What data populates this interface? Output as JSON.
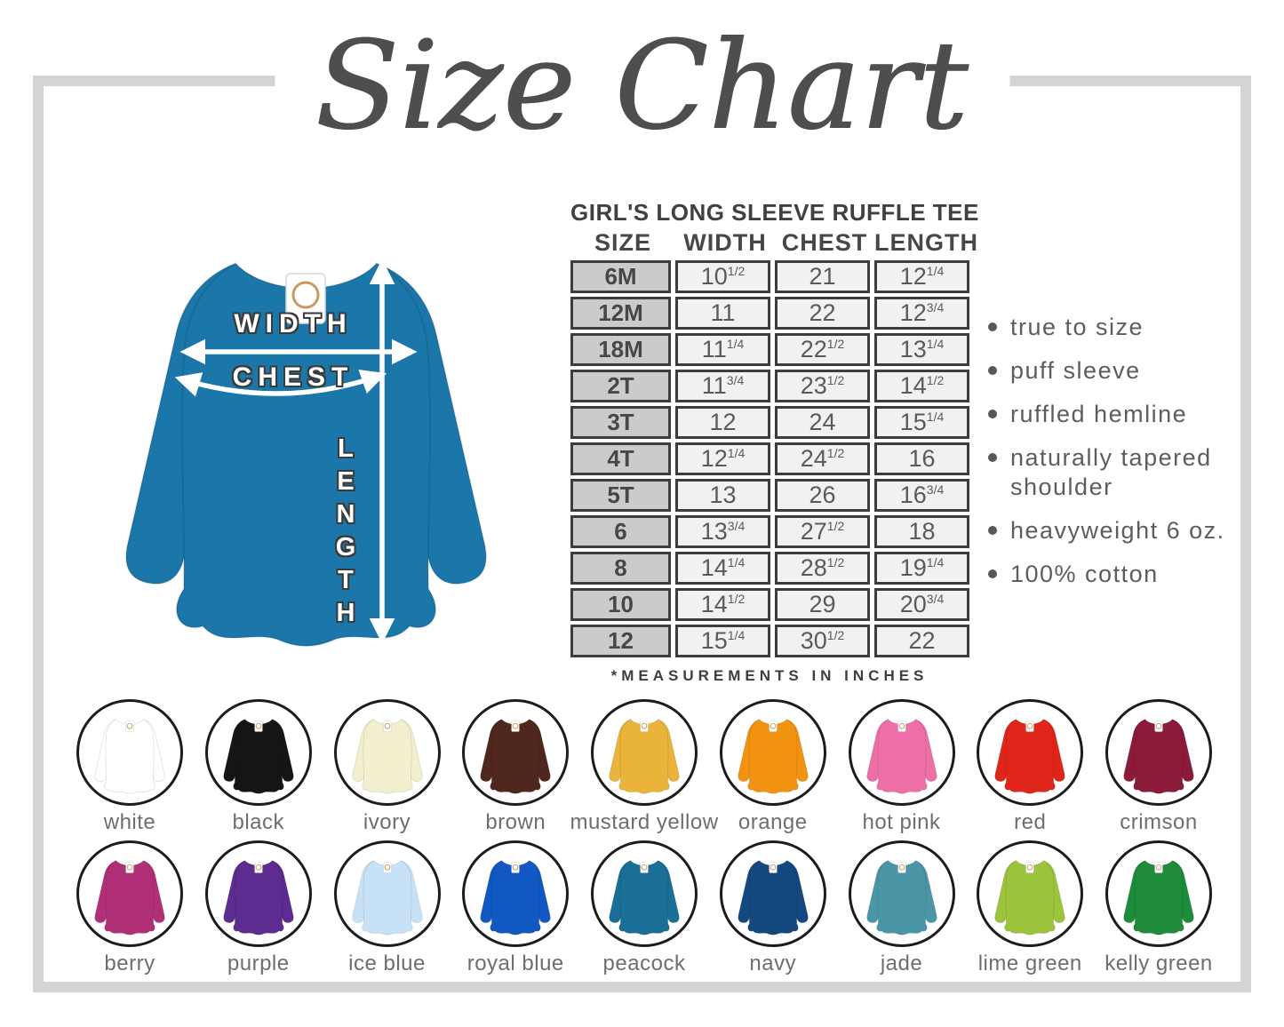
{
  "title": "Size Chart",
  "table": {
    "heading": "GIRL'S LONG SLEEVE RUFFLE TEE",
    "columns": [
      "SIZE",
      "WIDTH",
      "CHEST",
      "LENGTH"
    ],
    "rows": [
      [
        "6M",
        "10 1/2",
        "21",
        "12 1/4"
      ],
      [
        "12M",
        "11",
        "22",
        "12 3/4"
      ],
      [
        "18M",
        "11 1/4",
        "22 1/2",
        "13 1/4"
      ],
      [
        "2T",
        "11 3/4",
        "23 1/2",
        "14 1/2"
      ],
      [
        "3T",
        "12",
        "24",
        "15 1/4"
      ],
      [
        "4T",
        "12 1/4",
        "24 1/2",
        "16"
      ],
      [
        "5T",
        "13",
        "26",
        "16 3/4"
      ],
      [
        "6",
        "13 3/4",
        "27 1/2",
        "18"
      ],
      [
        "8",
        "14 1/4",
        "28 1/2",
        "19 1/4"
      ],
      [
        "10",
        "14 1/2",
        "29",
        "20 3/4"
      ],
      [
        "12",
        "15 1/4",
        "30 1/2",
        "22"
      ]
    ],
    "footnote": "*MEASUREMENTS IN INCHES"
  },
  "diagram": {
    "shirt_color": "#1b76a9",
    "labels": {
      "width": "WIDTH",
      "chest": "CHEST",
      "length": "LENGTH"
    }
  },
  "features": [
    "true to size",
    "puff sleeve",
    "ruffled hemline",
    "naturally tapered shoulder",
    "heavyweight 6 oz.",
    "100% cotton"
  ],
  "swatches": [
    {
      "label": "white",
      "hex": "#ffffff"
    },
    {
      "label": "black",
      "hex": "#151515"
    },
    {
      "label": "ivory",
      "hex": "#f1efcd"
    },
    {
      "label": "brown",
      "hex": "#50271c"
    },
    {
      "label": "mustard yellow",
      "hex": "#eab43a"
    },
    {
      "label": "orange",
      "hex": "#f19210"
    },
    {
      "label": "hot pink",
      "hex": "#ee6ea8"
    },
    {
      "label": "red",
      "hex": "#e0251a"
    },
    {
      "label": "crimson",
      "hex": "#8c1b39"
    },
    {
      "label": "berry",
      "hex": "#b03078"
    },
    {
      "label": "purple",
      "hex": "#5c2c90"
    },
    {
      "label": "ice blue",
      "hex": "#c7e2f7"
    },
    {
      "label": "royal blue",
      "hex": "#1258c2"
    },
    {
      "label": "peacock",
      "hex": "#1a6f96"
    },
    {
      "label": "navy",
      "hex": "#14497f"
    },
    {
      "label": "jade",
      "hex": "#4b96a6"
    },
    {
      "label": "lime green",
      "hex": "#9cc33c"
    },
    {
      "label": "kelly green",
      "hex": "#1f8c3b"
    }
  ],
  "chart_data": {
    "type": "table",
    "title": "Size Chart",
    "subtitle": "GIRL'S LONG SLEEVE RUFFLE TEE",
    "units": "inches",
    "columns": [
      "SIZE",
      "WIDTH",
      "CHEST",
      "LENGTH"
    ],
    "rows": [
      [
        "6M",
        10.5,
        21,
        12.25
      ],
      [
        "12M",
        11,
        22,
        12.75
      ],
      [
        "18M",
        11.25,
        22.5,
        13.25
      ],
      [
        "2T",
        11.75,
        23.5,
        14.5
      ],
      [
        "3T",
        12,
        24,
        15.25
      ],
      [
        "4T",
        12.25,
        24.5,
        16
      ],
      [
        "5T",
        13,
        26,
        16.75
      ],
      [
        "6",
        13.75,
        27.5,
        18
      ],
      [
        "8",
        14.25,
        28.5,
        19.25
      ],
      [
        "10",
        14.5,
        29,
        20.75
      ],
      [
        "12",
        15.25,
        30.5,
        22
      ]
    ]
  }
}
